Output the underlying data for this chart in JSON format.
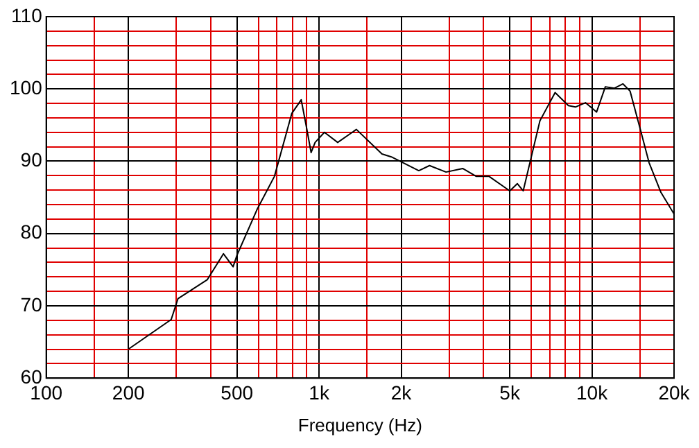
{
  "chart_data": {
    "type": "line",
    "xlabel": "Frequency (Hz)",
    "log": "x",
    "grid": true,
    "legend": false,
    "marker": "none",
    "line_style": "solid",
    "xlim": [
      100,
      20000
    ],
    "ylim": [
      60,
      110
    ],
    "xticks": [
      100,
      {
        "value": 150,
        "label": null
      },
      200,
      {
        "value": 300,
        "label": null
      },
      {
        "value": 400,
        "label": null
      },
      500,
      {
        "value": 600,
        "label": null
      },
      {
        "value": 700,
        "label": null
      },
      {
        "value": 800,
        "label": null
      },
      {
        "value": 900,
        "label": null
      },
      {
        "value": 1000,
        "label": "1k"
      },
      {
        "value": 1500,
        "label": null
      },
      {
        "value": 2000,
        "label": "2k"
      },
      {
        "value": 3000,
        "label": null
      },
      {
        "value": 4000,
        "label": null
      },
      {
        "value": 5000,
        "label": "5k"
      },
      {
        "value": 6000,
        "label": null
      },
      {
        "value": 7000,
        "label": null
      },
      {
        "value": 8000,
        "label": null
      },
      {
        "value": 9000,
        "label": null
      },
      {
        "value": 10000,
        "label": "10k"
      },
      {
        "value": 15000,
        "label": null
      },
      {
        "value": 20000,
        "label": "20k"
      }
    ],
    "yticks": [
      60,
      {
        "value": 62,
        "label": null
      },
      {
        "value": 64,
        "label": null
      },
      {
        "value": 66,
        "label": null
      },
      {
        "value": 68,
        "label": null
      },
      70,
      {
        "value": 72,
        "label": null
      },
      {
        "value": 74,
        "label": null
      },
      {
        "value": 76,
        "label": null
      },
      {
        "value": 78,
        "label": null
      },
      80,
      {
        "value": 82,
        "label": null
      },
      {
        "value": 84,
        "label": null
      },
      {
        "value": 86,
        "label": null
      },
      {
        "value": 88,
        "label": null
      },
      90,
      {
        "value": 92,
        "label": null
      },
      {
        "value": 94,
        "label": null
      },
      {
        "value": 96,
        "label": null
      },
      {
        "value": 98,
        "label": null
      },
      100,
      {
        "value": 102,
        "label": null
      },
      {
        "value": 104,
        "label": null
      },
      {
        "value": 106,
        "label": null
      },
      {
        "value": 108,
        "label": null
      },
      110
    ],
    "series": [
      {
        "color": "#000000",
        "x": [
          200,
          287,
          304,
          389,
          446,
          484,
          500,
          592,
          686,
          794,
          860,
          900,
          935,
          967,
          1046,
          1170,
          1370,
          1700,
          1840,
          2320,
          2540,
          2920,
          3360,
          3770,
          4200,
          5000,
          5330,
          5600,
          6450,
          7330,
          8200,
          8700,
          9470,
          10400,
          11200,
          12100,
          13000,
          13800,
          15000,
          16200,
          17900,
          20000
        ],
        "values": [
          64.0,
          68.1,
          71.0,
          73.6,
          77.2,
          75.4,
          77.0,
          83.3,
          87.9,
          96.6,
          98.5,
          94.6,
          91.2,
          92.6,
          94.0,
          92.6,
          94.4,
          91.0,
          90.6,
          88.7,
          89.4,
          88.5,
          89.0,
          87.9,
          87.9,
          85.9,
          86.9,
          85.9,
          95.6,
          99.5,
          97.7,
          97.5,
          98.1,
          96.8,
          100.3,
          100.1,
          100.7,
          99.7,
          94.6,
          89.8,
          85.7,
          82.7
        ]
      }
    ]
  }
}
